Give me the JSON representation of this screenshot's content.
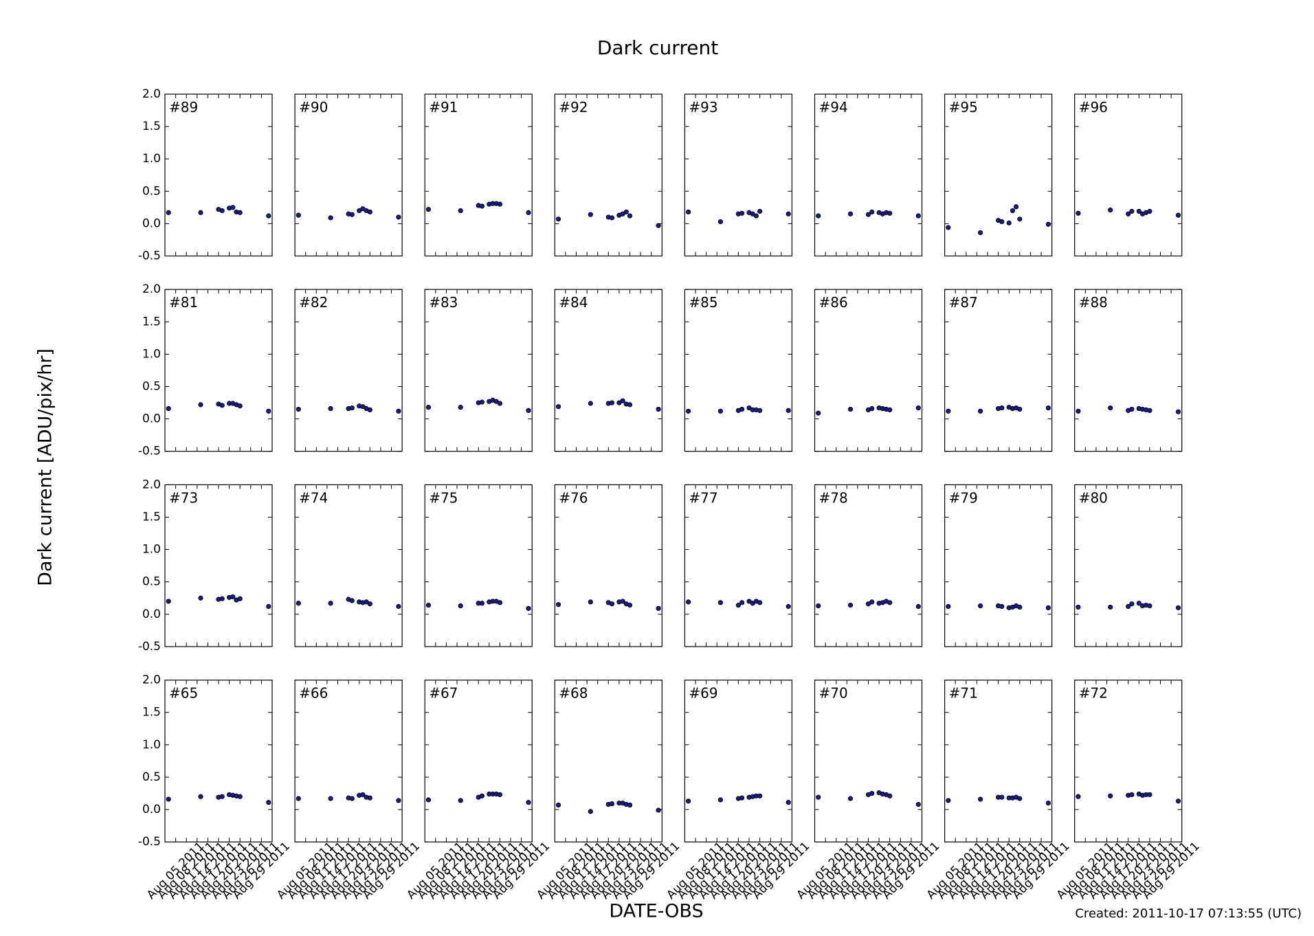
{
  "chart_data": {
    "type": "scatter",
    "title": "Dark current",
    "xlabel": "DATE-OBS",
    "ylabel": "Dark current [ADU/pix/hr]",
    "color": "#1a1a80",
    "x": [
      "Aug 03 2011",
      "Aug 12 2011",
      "Aug 17 2011",
      "Aug 18 2011",
      "Aug 20 2011",
      "Aug 21 2011",
      "Aug 22 2011",
      "Aug 23 2011",
      "Aug 31 2011"
    ],
    "xlim": [
      "Aug 02 2011",
      "Sep 01 2011"
    ],
    "xticks": [
      "Aug 05 2011",
      "Aug 08 2011",
      "Aug 11 2011",
      "Aug 14 2011",
      "Aug 17 2011",
      "Aug 20 2011",
      "Aug 23 2011",
      "Aug 26 2011",
      "Aug 29 2011"
    ],
    "ylim": [
      -0.5,
      2.0
    ],
    "yticks": [
      -0.5,
      {
        "value": 0,
        "label": "0.0"
      },
      0.5,
      {
        "value": 1,
        "label": "1.0"
      },
      1.5,
      {
        "value": 2,
        "label": "2.0"
      }
    ],
    "panels": [
      {
        "label": "#89",
        "values": [
          0.17,
          0.17,
          0.22,
          0.2,
          0.24,
          0.25,
          0.18,
          0.17,
          0.12
        ]
      },
      {
        "label": "#90",
        "values": [
          0.13,
          0.09,
          0.15,
          0.14,
          0.2,
          0.23,
          0.2,
          0.18,
          0.1
        ]
      },
      {
        "label": "#91",
        "values": [
          0.22,
          0.2,
          0.28,
          0.27,
          0.3,
          0.31,
          0.31,
          0.3,
          0.17
        ]
      },
      {
        "label": "#92",
        "values": [
          0.07,
          0.14,
          0.1,
          0.09,
          0.13,
          0.15,
          0.18,
          0.12,
          -0.03
        ]
      },
      {
        "label": "#93",
        "values": [
          0.18,
          0.03,
          0.15,
          0.16,
          0.17,
          0.15,
          0.12,
          0.19,
          0.15
        ]
      },
      {
        "label": "#94",
        "values": [
          0.12,
          0.15,
          0.14,
          0.18,
          0.17,
          0.15,
          0.17,
          0.16,
          0.12
        ]
      },
      {
        "label": "#95",
        "values": [
          -0.06,
          -0.14,
          0.05,
          0.03,
          0.01,
          0.2,
          0.26,
          0.07,
          -0.01
        ]
      },
      {
        "label": "#96",
        "values": [
          0.16,
          0.21,
          0.15,
          0.19,
          0.19,
          0.15,
          0.17,
          0.19,
          0.13
        ]
      },
      {
        "label": "#81",
        "values": [
          0.16,
          0.22,
          0.23,
          0.21,
          0.24,
          0.24,
          0.22,
          0.2,
          0.12
        ]
      },
      {
        "label": "#82",
        "values": [
          0.15,
          0.16,
          0.16,
          0.17,
          0.2,
          0.19,
          0.16,
          0.14,
          0.12
        ]
      },
      {
        "label": "#83",
        "values": [
          0.18,
          0.18,
          0.25,
          0.26,
          0.27,
          0.29,
          0.27,
          0.24,
          0.13
        ]
      },
      {
        "label": "#84",
        "values": [
          0.19,
          0.24,
          0.24,
          0.25,
          0.25,
          0.28,
          0.23,
          0.22,
          0.15
        ]
      },
      {
        "label": "#85",
        "values": [
          0.12,
          0.12,
          0.13,
          0.15,
          0.17,
          0.14,
          0.14,
          0.13,
          0.13
        ]
      },
      {
        "label": "#86",
        "values": [
          0.09,
          0.15,
          0.14,
          0.16,
          0.17,
          0.16,
          0.15,
          0.14,
          0.17
        ]
      },
      {
        "label": "#87",
        "values": [
          0.12,
          0.12,
          0.16,
          0.17,
          0.18,
          0.16,
          0.17,
          0.15,
          0.17
        ]
      },
      {
        "label": "#88",
        "values": [
          0.12,
          0.17,
          0.13,
          0.15,
          0.16,
          0.15,
          0.14,
          0.13,
          0.11
        ]
      },
      {
        "label": "#73",
        "values": [
          0.2,
          0.25,
          0.23,
          0.24,
          0.26,
          0.27,
          0.22,
          0.24,
          0.12
        ]
      },
      {
        "label": "#74",
        "values": [
          0.17,
          0.17,
          0.23,
          0.21,
          0.19,
          0.18,
          0.19,
          0.16,
          0.12
        ]
      },
      {
        "label": "#75",
        "values": [
          0.14,
          0.13,
          0.17,
          0.17,
          0.19,
          0.2,
          0.2,
          0.18,
          0.09
        ]
      },
      {
        "label": "#76",
        "values": [
          0.15,
          0.19,
          0.18,
          0.16,
          0.19,
          0.2,
          0.16,
          0.14,
          0.09
        ]
      },
      {
        "label": "#77",
        "values": [
          0.19,
          0.18,
          0.14,
          0.18,
          0.2,
          0.17,
          0.2,
          0.18,
          0.12
        ]
      },
      {
        "label": "#78",
        "values": [
          0.13,
          0.14,
          0.16,
          0.19,
          0.17,
          0.18,
          0.2,
          0.18,
          0.12
        ]
      },
      {
        "label": "#79",
        "values": [
          0.12,
          0.13,
          0.13,
          0.12,
          0.1,
          0.11,
          0.13,
          0.11,
          0.1
        ]
      },
      {
        "label": "#80",
        "values": [
          0.11,
          0.11,
          0.12,
          0.16,
          0.17,
          0.13,
          0.14,
          0.13,
          0.1
        ]
      },
      {
        "label": "#65",
        "values": [
          0.16,
          0.2,
          0.19,
          0.2,
          0.23,
          0.22,
          0.21,
          0.2,
          0.11
        ]
      },
      {
        "label": "#66",
        "values": [
          0.17,
          0.17,
          0.18,
          0.17,
          0.22,
          0.23,
          0.19,
          0.18,
          0.14
        ]
      },
      {
        "label": "#67",
        "values": [
          0.15,
          0.14,
          0.19,
          0.21,
          0.24,
          0.24,
          0.24,
          0.23,
          0.11
        ]
      },
      {
        "label": "#68",
        "values": [
          0.07,
          -0.03,
          0.08,
          0.09,
          0.1,
          0.1,
          0.08,
          0.07,
          -0.01
        ]
      },
      {
        "label": "#69",
        "values": [
          0.13,
          0.15,
          0.17,
          0.18,
          0.19,
          0.2,
          0.21,
          0.21,
          0.11
        ]
      },
      {
        "label": "#70",
        "values": [
          0.19,
          0.17,
          0.23,
          0.25,
          0.26,
          0.24,
          0.23,
          0.21,
          0.08
        ]
      },
      {
        "label": "#71",
        "values": [
          0.14,
          0.16,
          0.19,
          0.19,
          0.18,
          0.18,
          0.19,
          0.17,
          0.1
        ]
      },
      {
        "label": "#72",
        "values": [
          0.2,
          0.21,
          0.22,
          0.23,
          0.24,
          0.22,
          0.23,
          0.23,
          0.13
        ]
      }
    ]
  },
  "created": "Created: 2011-10-17 07:13:55 (UTC)"
}
